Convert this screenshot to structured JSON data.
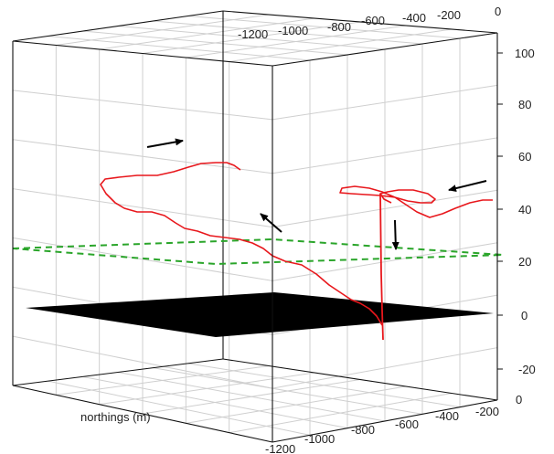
{
  "chart_data": {
    "type": "3d-line",
    "axes": {
      "vertical": {
        "ticks": [
          100,
          80,
          60,
          40,
          20,
          0,
          -20
        ],
        "range": [
          -30,
          100
        ]
      },
      "depth_back": {
        "ticks": [
          -1200,
          -1000,
          -800,
          -600,
          -400,
          -200,
          0
        ]
      },
      "northings": {
        "label": "northings (m)",
        "ticks": [
          -1200,
          -1000,
          -800,
          -600,
          -400,
          -200,
          0
        ]
      }
    },
    "colors": {
      "track": "#e8171c",
      "dashed_plane": "#2aa52a",
      "solid_plane": "#000000",
      "arrows": "#000000",
      "grid": "#cfcfcf"
    },
    "layers": [
      {
        "name": "dashed plane",
        "level": 24,
        "style": "dashed"
      },
      {
        "name": "solid plane",
        "level": 0,
        "style": "filled"
      }
    ],
    "arrows": [
      {
        "direction": "right"
      },
      {
        "direction": "up-left"
      },
      {
        "direction": "left"
      },
      {
        "direction": "down"
      }
    ]
  }
}
